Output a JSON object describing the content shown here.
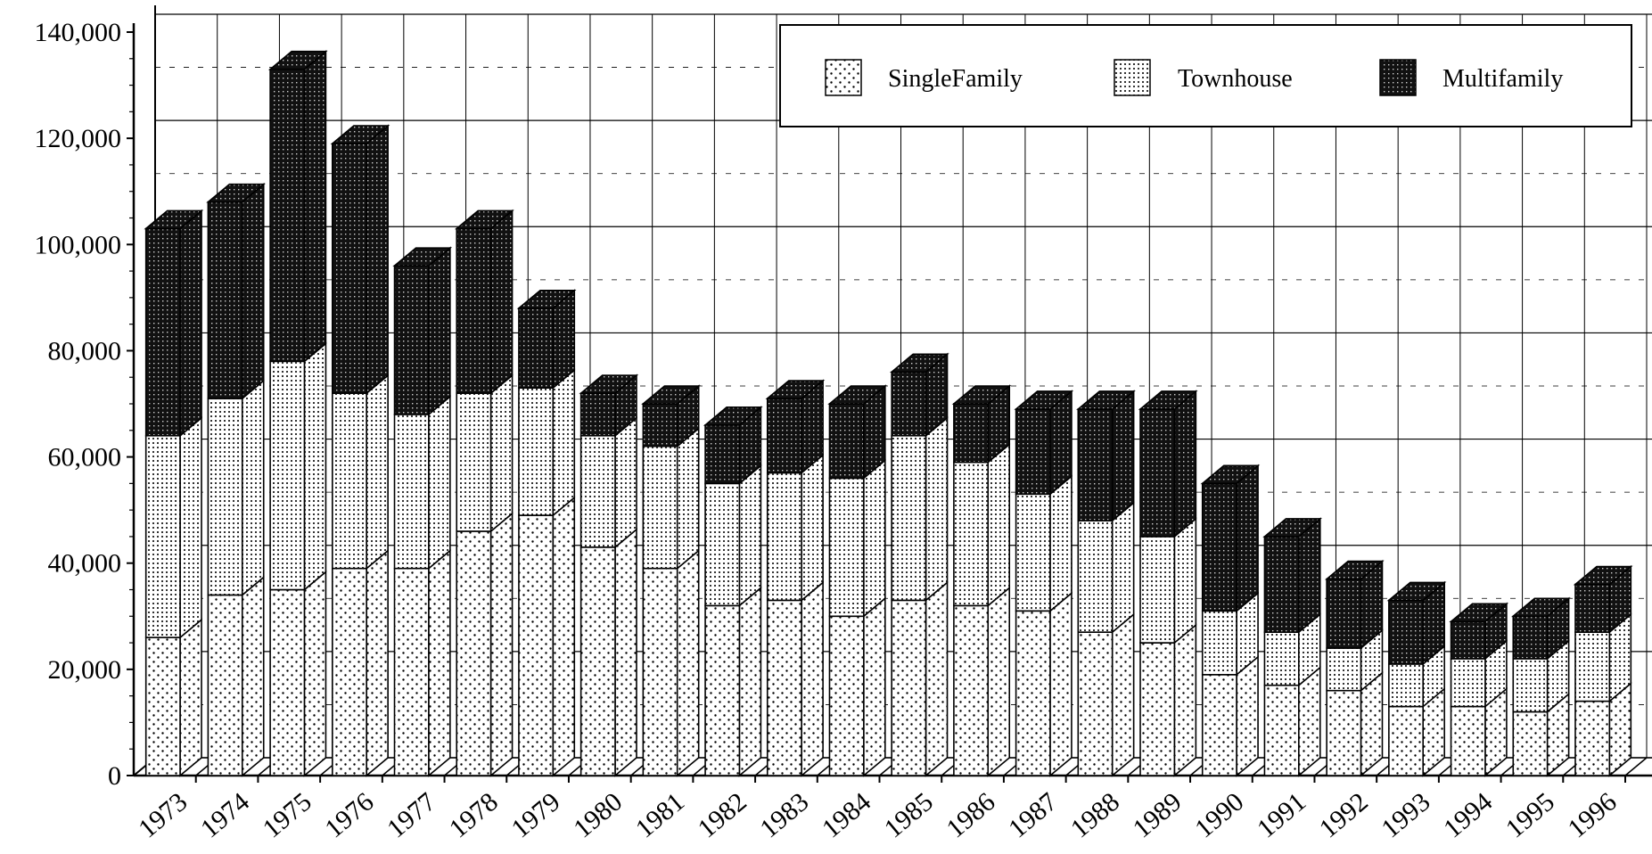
{
  "chart_data": {
    "type": "bar",
    "stacked": true,
    "three_d": true,
    "title": "",
    "xlabel": "",
    "ylabel": "",
    "ylim": [
      0,
      140000
    ],
    "y_ticks": [
      "0",
      "20,000",
      "40,000",
      "60,000",
      "80,000",
      "100,000",
      "120,000",
      "140,000"
    ],
    "y_tick_values": [
      0,
      20000,
      40000,
      60000,
      80000,
      100000,
      120000,
      140000
    ],
    "grid": true,
    "legend_position": "top-right",
    "categories": [
      "1973",
      "1974",
      "1975",
      "1976",
      "1977",
      "1978",
      "1979",
      "1980",
      "1981",
      "1982",
      "1983",
      "1984",
      "1985",
      "1986",
      "1987",
      "1988",
      "1989",
      "1990",
      "1991",
      "1992",
      "1993",
      "1994",
      "1995",
      "1996"
    ],
    "series": [
      {
        "name": "SingleFamily",
        "pattern": "sparse-dots",
        "color": "#ffffff",
        "values": [
          26000,
          34000,
          35000,
          39000,
          39000,
          46000,
          49000,
          43000,
          39000,
          32000,
          33000,
          30000,
          33000,
          32000,
          31000,
          27000,
          25000,
          19000,
          17000,
          16000,
          13000,
          13000,
          12000,
          14000
        ]
      },
      {
        "name": "Townhouse",
        "pattern": "dense-dots",
        "color": "#c8c8c8",
        "values": [
          38000,
          37000,
          43000,
          33000,
          29000,
          26000,
          24000,
          21000,
          23000,
          23000,
          24000,
          26000,
          31000,
          27000,
          22000,
          21000,
          20000,
          12000,
          10000,
          8000,
          8000,
          9000,
          10000,
          13000
        ]
      },
      {
        "name": "Multifamily",
        "pattern": "dark-grid",
        "color": "#222222",
        "values": [
          39000,
          37000,
          55000,
          47000,
          28000,
          31000,
          15000,
          8000,
          8000,
          11000,
          14000,
          14000,
          12000,
          11000,
          16000,
          21000,
          24000,
          24000,
          18000,
          13000,
          12000,
          7000,
          8000,
          9000
        ]
      }
    ]
  }
}
